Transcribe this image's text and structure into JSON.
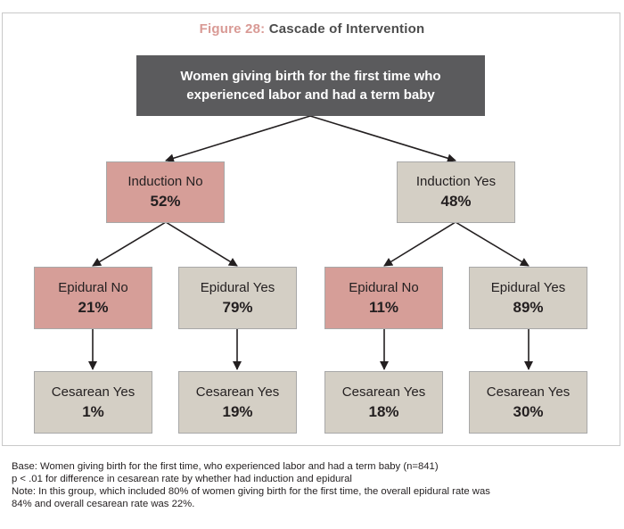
{
  "title": {
    "figure_label": "Figure 28:",
    "name": "Cascade of Intervention"
  },
  "root": {
    "text": "Women giving birth for the first time who experienced labor and had a term baby"
  },
  "induction": [
    {
      "label": "Induction No",
      "pct": "52%",
      "color": "#d69e98"
    },
    {
      "label": "Induction Yes",
      "pct": "48%",
      "color": "#d4cfc5"
    }
  ],
  "epidural": [
    {
      "label": "Epidural No",
      "pct": "21%",
      "color": "#d69e98"
    },
    {
      "label": "Epidural Yes",
      "pct": "79%",
      "color": "#d4cfc5"
    },
    {
      "label": "Epidural No",
      "pct": "11%",
      "color": "#d69e98"
    },
    {
      "label": "Epidural Yes",
      "pct": "89%",
      "color": "#d4cfc5"
    }
  ],
  "cesarean": [
    {
      "label": "Cesarean Yes",
      "pct": "1%"
    },
    {
      "label": "Cesarean Yes",
      "pct": "19%"
    },
    {
      "label": "Cesarean Yes",
      "pct": "18%"
    },
    {
      "label": "Cesarean Yes",
      "pct": "30%"
    }
  ],
  "notes": {
    "base": "Base: Women giving birth for the first time, who experienced labor and had a term baby (n=841)",
    "significance": "p < .01 for difference in cesarean rate by whether had induction and epidural",
    "note_line1": "Note: In this group, which included 80% of women giving birth for the first time, the overall epidural rate was",
    "note_line2": "84% and overall cesarean rate was 22%."
  },
  "colors": {
    "no": "#d69e98",
    "yes": "#d4cfc5",
    "root": "#5b5b5d",
    "title_accent": "#d99a95"
  }
}
